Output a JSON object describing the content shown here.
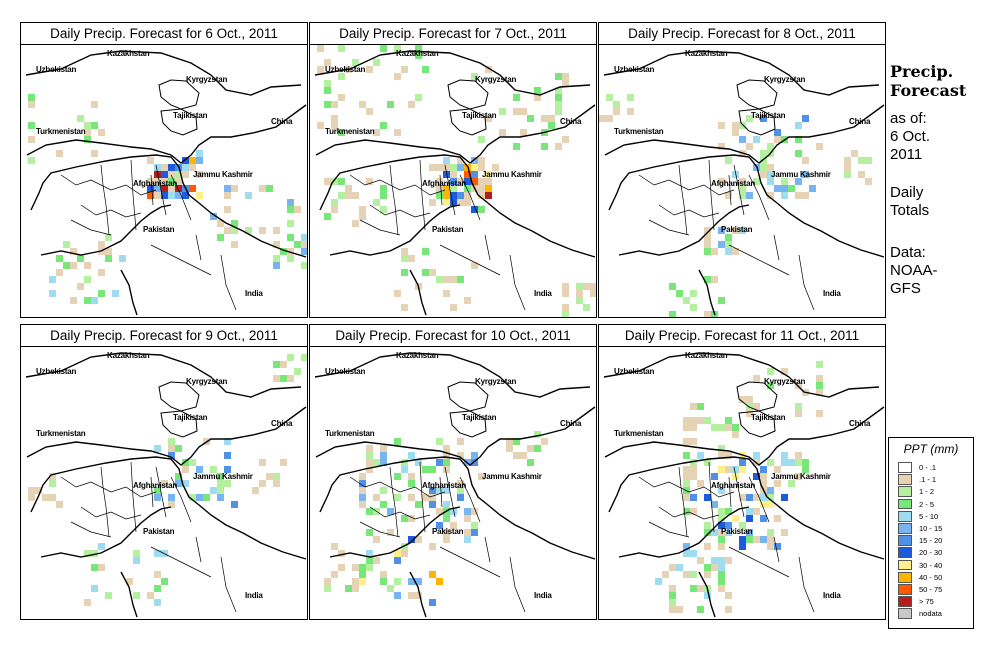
{
  "panels": [
    {
      "title": "Daily Precip. Forecast for  6 Oct., 2011"
    },
    {
      "title": "Daily Precip. Forecast for  7 Oct., 2011"
    },
    {
      "title": "Daily Precip. Forecast for  8 Oct., 2011"
    },
    {
      "title": "Daily Precip. Forecast for  9 Oct., 2011"
    },
    {
      "title": "Daily Precip. Forecast for  10 Oct., 2011"
    },
    {
      "title": "Daily Precip. Forecast for  11 Oct., 2011"
    }
  ],
  "map_labels": {
    "kazakhstan": "Kazakhstan",
    "uzbekistan": "Uzbekistan",
    "kyrgyzstan": "Kyrgyzstan",
    "tajikistan": "Tajikistan",
    "china": "China",
    "turkmenistan": "Turkmenistan",
    "afghanistan": "Afghanistan",
    "jammu_kashmir": "Jammu Kashmir",
    "pakistan": "Pakistan",
    "india": "India"
  },
  "side": {
    "title_line1": "Precip.",
    "title_line2": "Forecast",
    "asof_line1": "as of:",
    "asof_line2": "6 Oct.",
    "asof_line3": "2011",
    "daily_line1": "Daily",
    "daily_line2": "Totals",
    "data_line1": "Data:",
    "data_line2": "NOAA-",
    "data_line3": "GFS"
  },
  "legend": {
    "title": "PPT (mm)",
    "items": [
      {
        "label": "0 - .1",
        "color": "#ffffff"
      },
      {
        "label": ".1 - 1",
        "color": "#e6d2b4"
      },
      {
        "label": "1 - 2",
        "color": "#b4f0a0"
      },
      {
        "label": "2 - 5",
        "color": "#78e678"
      },
      {
        "label": "5 - 10",
        "color": "#a0dcf0"
      },
      {
        "label": "10 - 15",
        "color": "#78b4f0"
      },
      {
        "label": "15 - 20",
        "color": "#5090e6"
      },
      {
        "label": "20 - 30",
        "color": "#1e5adc"
      },
      {
        "label": "30 - 40",
        "color": "#fff08c"
      },
      {
        "label": "40 - 50",
        "color": "#ffb400"
      },
      {
        "label": "50 - 75",
        "color": "#ff5a00"
      },
      {
        "label": "> 75",
        "color": "#b41e1e"
      },
      {
        "label": "nodata",
        "color": "#c8c8c8"
      }
    ]
  }
}
